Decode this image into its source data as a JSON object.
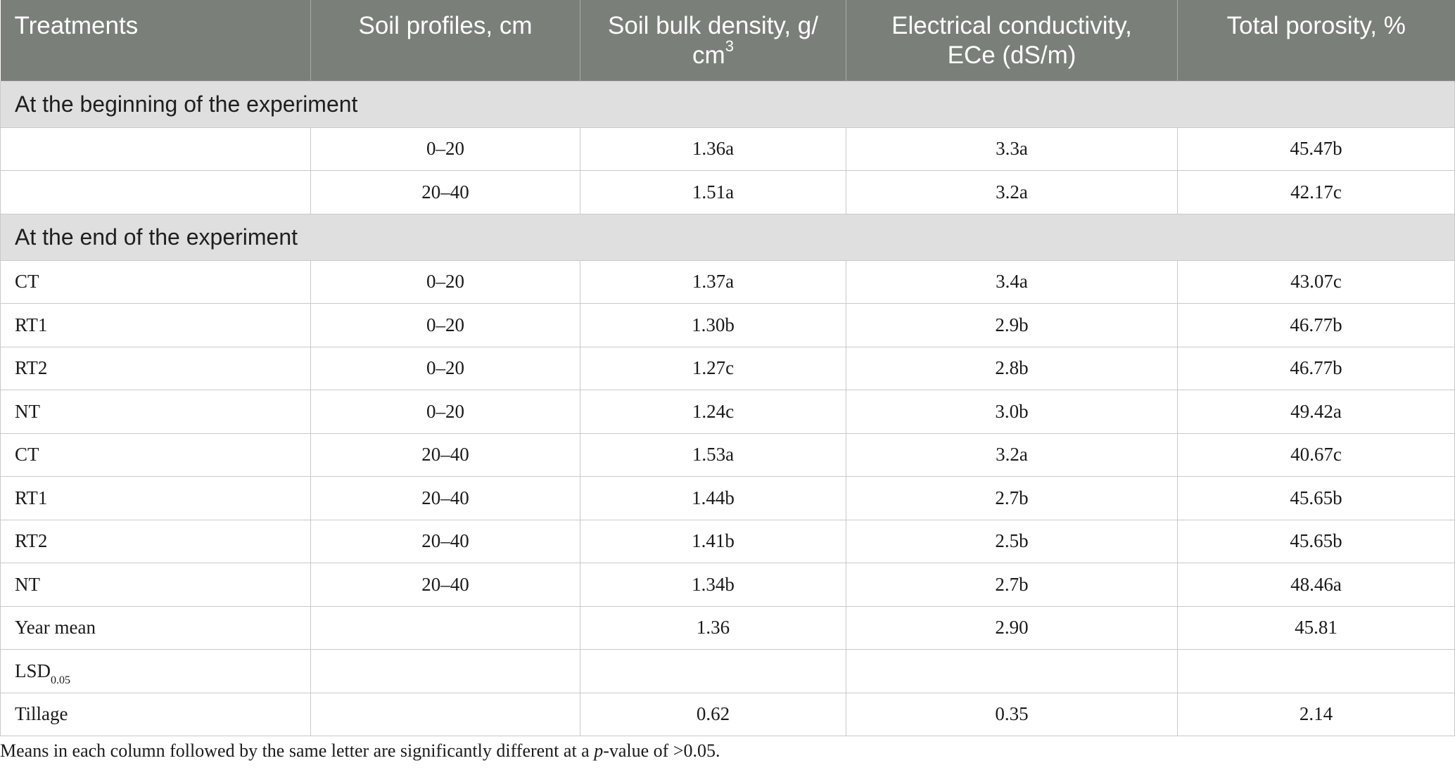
{
  "table": {
    "headers": [
      "Treatments",
      "Soil profiles, cm",
      "Soil bulk density, g/cm",
      "Electrical conductivity, ECe (dS/m)",
      "Total porosity, %"
    ],
    "bulk_density_header": {
      "part1": "Soil bulk density, g/",
      "part2": "cm",
      "sup": "3"
    },
    "ec_header": {
      "line1": "Electrical conductivity,",
      "line2": "ECe (dS/m)"
    },
    "sections": [
      {
        "title": "At the beginning of the experiment",
        "rows": [
          [
            "",
            "0–20",
            "1.36a",
            "3.3a",
            "45.47b"
          ],
          [
            "",
            "20–40",
            "1.51a",
            "3.2a",
            "42.17c"
          ]
        ]
      },
      {
        "title": "At the end of the experiment",
        "rows": [
          [
            "CT",
            "0–20",
            "1.37a",
            "3.4a",
            "43.07c"
          ],
          [
            "RT1",
            "0–20",
            "1.30b",
            "2.9b",
            "46.77b"
          ],
          [
            "RT2",
            "0–20",
            "1.27c",
            "2.8b",
            "46.77b"
          ],
          [
            "NT",
            "0–20",
            "1.24c",
            "3.0b",
            "49.42a"
          ],
          [
            "CT",
            "20–40",
            "1.53a",
            "3.2a",
            "40.67c"
          ],
          [
            "RT1",
            "20–40",
            "1.44b",
            "2.7b",
            "45.65b"
          ],
          [
            "RT2",
            "20–40",
            "1.41b",
            "2.5b",
            "45.65b"
          ],
          [
            "NT",
            "20–40",
            "1.34b",
            "2.7b",
            "48.46a"
          ],
          [
            "Year mean",
            "",
            "1.36",
            "2.90",
            "45.81"
          ]
        ]
      }
    ],
    "lsd_row": {
      "label_main": "LSD",
      "label_sub": "0.05",
      "values": [
        "",
        "",
        "",
        ""
      ]
    },
    "tillage_row": [
      "Tillage",
      "",
      "0.62",
      "0.35",
      "2.14"
    ]
  },
  "footnote": {
    "before": "Means in each column followed by the same letter are significantly different at a ",
    "italic": "p",
    "after": "-value of >0.05."
  },
  "colors": {
    "header_bg": "#7a8079",
    "section_bg": "#e0dfe0",
    "border": "#c9c9c9"
  }
}
